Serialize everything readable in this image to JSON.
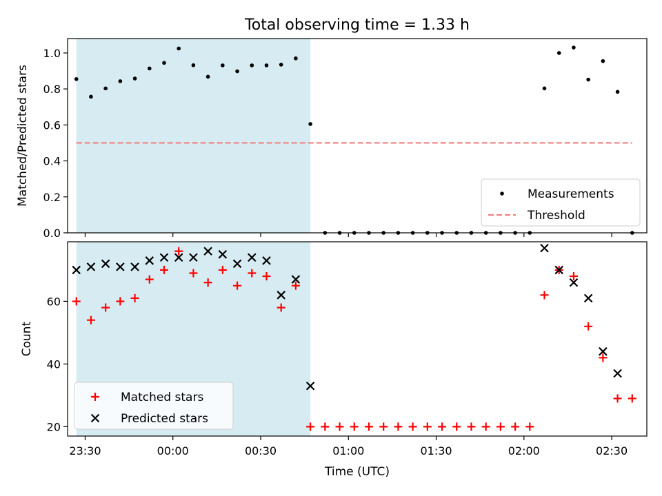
{
  "chart_data": {
    "type": "scatter",
    "title": "Total observing time = 1.33 h",
    "xlabel": "Time (UTC)",
    "x_tick_labels": [
      "23:30",
      "00:00",
      "00:30",
      "01:00",
      "01:30",
      "02:00",
      "02:30"
    ],
    "x_tick_values": [
      "23:30",
      "00:00",
      "00:30",
      "01:00",
      "01:30",
      "02:00",
      "02:30"
    ],
    "x_range": [
      "23:24",
      "02:42"
    ],
    "shaded_interval": [
      "23:27",
      "00:47"
    ],
    "shade_color": "#add8e6",
    "panels": [
      {
        "ylabel": "Matched/Predicted stars",
        "ylim": [
          0,
          1.08
        ],
        "y_ticks": [
          "0.0",
          "0.2",
          "0.4",
          "0.6",
          "0.8",
          "1.0"
        ],
        "legend_position": "lower right",
        "series": [
          {
            "name": "Measurements",
            "marker": "dot",
            "color": "#000000",
            "points": [
              [
                "23:27",
                0.855
              ],
              [
                "23:32",
                0.757
              ],
              [
                "23:37",
                0.803
              ],
              [
                "23:42",
                0.843
              ],
              [
                "23:47",
                0.858
              ],
              [
                "23:52",
                0.914
              ],
              [
                "23:57",
                0.945
              ],
              [
                "00:02",
                1.025
              ],
              [
                "00:07",
                0.932
              ],
              [
                "00:12",
                0.868
              ],
              [
                "00:17",
                0.931
              ],
              [
                "00:22",
                0.898
              ],
              [
                "00:27",
                0.931
              ],
              [
                "00:32",
                0.931
              ],
              [
                "00:37",
                0.935
              ],
              [
                "00:42",
                0.97
              ],
              [
                "00:47",
                0.605
              ],
              [
                "00:52",
                0
              ],
              [
                "00:57",
                0
              ],
              [
                "01:02",
                0
              ],
              [
                "01:07",
                0
              ],
              [
                "01:12",
                0
              ],
              [
                "01:17",
                0
              ],
              [
                "01:22",
                0
              ],
              [
                "01:27",
                0
              ],
              [
                "01:32",
                0
              ],
              [
                "01:37",
                0
              ],
              [
                "01:42",
                0
              ],
              [
                "01:47",
                0
              ],
              [
                "01:52",
                0
              ],
              [
                "01:57",
                0
              ],
              [
                "02:02",
                0
              ],
              [
                "02:07",
                0.803
              ],
              [
                "02:12",
                1.0
              ],
              [
                "02:17",
                1.03
              ],
              [
                "02:22",
                0.852
              ],
              [
                "02:27",
                0.955
              ],
              [
                "02:32",
                0.784
              ],
              [
                "02:37",
                0
              ]
            ]
          },
          {
            "name": "Threshold",
            "marker": "dashed-line",
            "color": "#f08080",
            "points": [
              [
                "23:27",
                0.5
              ],
              [
                "02:37",
                0.5
              ]
            ]
          }
        ]
      },
      {
        "ylabel": "Count",
        "ylim": [
          17,
          79
        ],
        "y_ticks": [
          "20",
          "40",
          "60"
        ],
        "legend_position": "lower left",
        "series": [
          {
            "name": "Matched stars",
            "marker": "plus",
            "color": "#ff0000",
            "points": [
              [
                "23:27",
                60
              ],
              [
                "23:32",
                54
              ],
              [
                "23:37",
                58
              ],
              [
                "23:42",
                60
              ],
              [
                "23:47",
                61
              ],
              [
                "23:52",
                67
              ],
              [
                "23:57",
                70
              ],
              [
                "00:02",
                76
              ],
              [
                "00:07",
                69
              ],
              [
                "00:12",
                66
              ],
              [
                "00:17",
                70
              ],
              [
                "00:22",
                65
              ],
              [
                "00:27",
                69
              ],
              [
                "00:32",
                68
              ],
              [
                "00:37",
                58
              ],
              [
                "00:42",
                65
              ],
              [
                "00:47",
                20
              ],
              [
                "00:52",
                20
              ],
              [
                "00:57",
                20
              ],
              [
                "01:02",
                20
              ],
              [
                "01:07",
                20
              ],
              [
                "01:12",
                20
              ],
              [
                "01:17",
                20
              ],
              [
                "01:22",
                20
              ],
              [
                "01:27",
                20
              ],
              [
                "01:32",
                20
              ],
              [
                "01:37",
                20
              ],
              [
                "01:42",
                20
              ],
              [
                "01:47",
                20
              ],
              [
                "01:52",
                20
              ],
              [
                "01:57",
                20
              ],
              [
                "02:02",
                20
              ],
              [
                "02:07",
                62
              ],
              [
                "02:12",
                70
              ],
              [
                "02:17",
                68
              ],
              [
                "02:22",
                52
              ],
              [
                "02:27",
                42
              ],
              [
                "02:32",
                29
              ],
              [
                "02:37",
                29
              ]
            ]
          },
          {
            "name": "Predicted stars",
            "marker": "x",
            "color": "#000000",
            "points": [
              [
                "23:27",
                70
              ],
              [
                "23:32",
                71
              ],
              [
                "23:37",
                72
              ],
              [
                "23:42",
                71
              ],
              [
                "23:47",
                71
              ],
              [
                "23:52",
                73
              ],
              [
                "23:57",
                74
              ],
              [
                "00:02",
                74
              ],
              [
                "00:07",
                74
              ],
              [
                "00:12",
                76
              ],
              [
                "00:17",
                75
              ],
              [
                "00:22",
                72
              ],
              [
                "00:27",
                74
              ],
              [
                "00:32",
                73
              ],
              [
                "00:37",
                62
              ],
              [
                "00:42",
                67
              ],
              [
                "00:47",
                33
              ],
              [
                "02:07",
                77
              ],
              [
                "02:12",
                70
              ],
              [
                "02:17",
                66
              ],
              [
                "02:22",
                61
              ],
              [
                "02:27",
                44
              ],
              [
                "02:32",
                37
              ]
            ]
          }
        ]
      }
    ]
  }
}
